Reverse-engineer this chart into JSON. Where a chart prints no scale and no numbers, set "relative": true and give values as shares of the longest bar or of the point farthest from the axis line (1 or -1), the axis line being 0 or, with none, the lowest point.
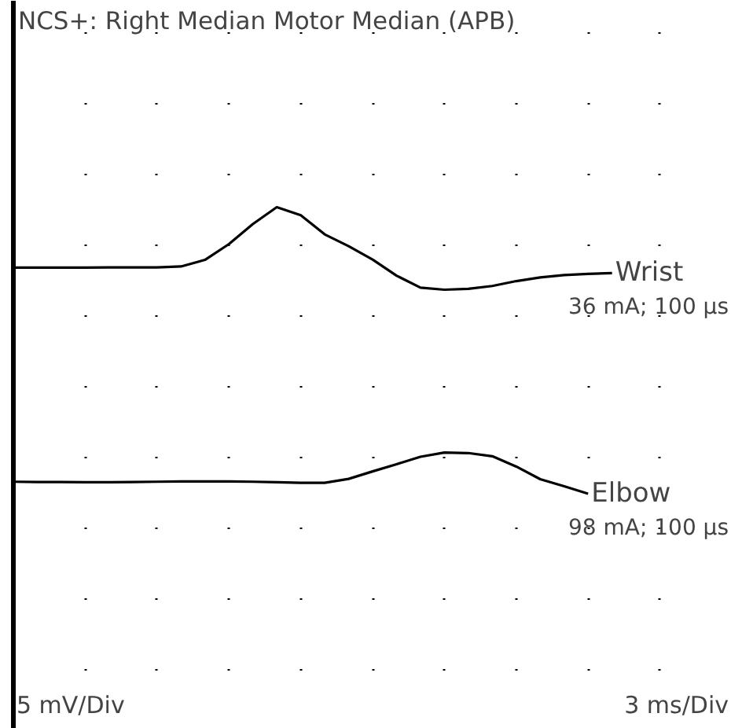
{
  "chart_data": {
    "type": "line",
    "title": "NCS+: Right Median Motor   Median (APB)",
    "relative": true,
    "categories": [
      null,
      null,
      null,
      null,
      null,
      null,
      null,
      null,
      null,
      null,
      null,
      null,
      null,
      null,
      null,
      null,
      null,
      null,
      null,
      null,
      null,
      null,
      null,
      null,
      null,
      null,
      null,
      null,
      null,
      null,
      null
    ],
    "series": [
      {
        "name": "Wrist",
        "color": "#000000",
        "values": [
          0.789,
          0.789,
          0.789,
          0.789,
          0.79,
          0.79,
          0.79,
          0.793,
          0.816,
          0.871,
          0.941,
          1.0,
          0.972,
          0.905,
          0.864,
          0.817,
          0.761,
          0.719,
          0.712,
          0.715,
          0.725,
          0.742,
          0.755,
          0.763,
          0.767,
          0.77,
          null,
          null,
          null,
          null,
          null
        ]
      },
      {
        "name": "Elbow",
        "color": "#000000",
        "values": [
          0.042,
          0.041,
          0.041,
          0.04,
          0.04,
          0.041,
          0.042,
          0.043,
          0.043,
          0.043,
          0.042,
          0.04,
          0.038,
          0.038,
          0.052,
          0.078,
          0.103,
          0.129,
          0.144,
          0.142,
          0.131,
          0.095,
          0.051,
          0.026,
          0.0,
          null,
          null,
          null,
          null,
          null,
          null
        ]
      }
    ],
    "annotations": [
      "36 mA; 100 µs",
      "98 mA; 100 µs",
      "5 mV/Div",
      "3 ms/Div"
    ]
  }
}
